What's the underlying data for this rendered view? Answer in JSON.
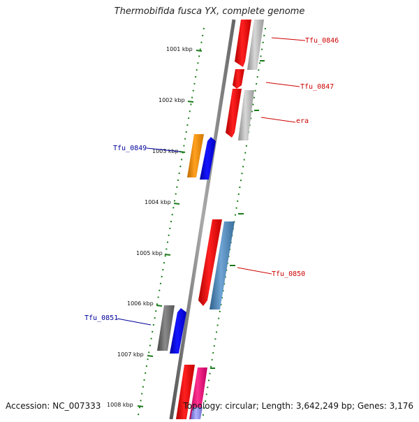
{
  "title": "Thermobifida fusca YX, complete genome",
  "accession": "Accession: NC_007333",
  "topology": "Topology: circular; Length: 3,642,249 bp; Genes: 3,176",
  "ticks": [
    "1001 kbp",
    "1002 kbp",
    "1003 kbp",
    "1004 kbp",
    "1005 kbp",
    "1006 kbp",
    "1007 kbp",
    "1008 kbp"
  ],
  "gene_labels": {
    "tfu0846": "Tfu_0846",
    "tfu0847": "Tfu_0847",
    "era": "era",
    "tfu0849": "Tfu_0849",
    "tfu0850": "Tfu_0850",
    "tfu0851": "Tfu_0851"
  },
  "colors": {
    "red": "#e60000",
    "gray": "#a8a8a8",
    "orange": "#f0920a",
    "blue": "#0000ee",
    "steelblue": "#4682b4",
    "darkgray": "#666666",
    "pink": "#ee1177",
    "lavender": "#8080e0",
    "tick": "#1a7a1a",
    "label_red": "#cc0000",
    "label_blue": "#000099"
  }
}
